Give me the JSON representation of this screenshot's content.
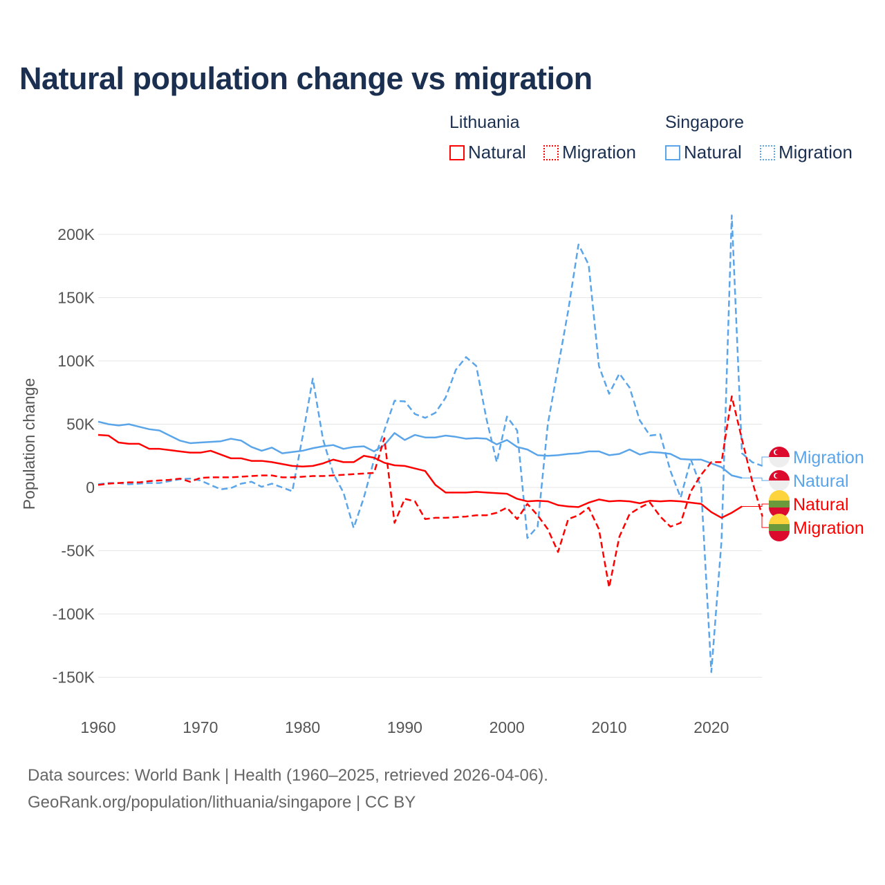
{
  "title": "Natural population change vs migration",
  "legend": {
    "groups": [
      {
        "name": "Lithuania",
        "items": [
          {
            "label": "Natural",
            "style": "solid"
          },
          {
            "label": "Migration",
            "style": "dotted"
          }
        ]
      },
      {
        "name": "Singapore",
        "items": [
          {
            "label": "Natural",
            "style": "solid"
          },
          {
            "label": "Migration",
            "style": "dotted"
          }
        ]
      }
    ]
  },
  "colors": {
    "lithuania": "#ff0000",
    "singapore": "#5aa5ea",
    "text": "#1b3050",
    "axis": "#555555",
    "grid": "#e6e6e6"
  },
  "footer": {
    "line1": "Data sources: World Bank | Health (1960–2025, retrieved 2026-04-06).",
    "line2": "GeoRank.org/population/lithuania/singapore | CC BY"
  },
  "chart_data": {
    "type": "line",
    "title": "Natural population change vs migration",
    "xlabel": "",
    "ylabel": "Population change",
    "xlim": [
      1960,
      2025
    ],
    "ylim": [
      -170000,
      215000
    ],
    "xticks": [
      "1960",
      "1970",
      "1980",
      "1990",
      "2000",
      "2010",
      "2020"
    ],
    "yticks": [
      {
        "v": 200000,
        "label": "200K"
      },
      {
        "v": 150000,
        "label": "150K"
      },
      {
        "v": 100000,
        "label": "100K"
      },
      {
        "v": 50000,
        "label": "50K"
      },
      {
        "v": 0,
        "label": "0"
      },
      {
        "v": -50000,
        "label": "-50K"
      },
      {
        "v": -100000,
        "label": "-100K"
      },
      {
        "v": -150000,
        "label": "-150K"
      }
    ],
    "grid": true,
    "start_year": 1960,
    "series": [
      {
        "name": "Singapore Migration",
        "label": "Migration",
        "country": "singapore",
        "dash": true,
        "values_k": [
          2.5,
          3.5,
          3.5,
          2.5,
          3,
          3.5,
          3.5,
          5,
          6.5,
          7,
          5.5,
          2,
          -1.5,
          -0.5,
          3,
          4.5,
          0.5,
          3,
          0,
          -3,
          40,
          86,
          38,
          11,
          -4,
          -32,
          -8,
          22,
          45,
          68.5,
          68,
          58,
          55,
          59,
          71,
          93,
          103,
          96,
          54,
          20,
          56,
          45,
          -40,
          -31,
          50,
          95,
          140,
          192,
          176,
          96,
          74,
          90,
          79,
          53,
          41,
          42,
          13,
          -8,
          22,
          0,
          -146,
          -42,
          215,
          27,
          20,
          17
        ]
      },
      {
        "name": "Singapore Natural",
        "label": "Natural",
        "country": "singapore",
        "dash": false,
        "values_k": [
          52,
          50,
          49,
          50,
          48,
          46,
          45,
          41,
          37,
          35,
          35.5,
          36,
          36.5,
          38.5,
          37,
          32,
          29,
          31.5,
          27,
          28,
          29,
          31,
          32.5,
          33.5,
          30.5,
          32,
          32.5,
          28.5,
          33.5,
          43,
          37.5,
          41.5,
          39.5,
          39.5,
          41,
          40,
          38.5,
          39,
          38.5,
          34,
          37.5,
          32,
          30,
          25.5,
          25,
          25.5,
          26.5,
          27,
          28.5,
          28.5,
          25.5,
          26.5,
          30,
          26,
          28,
          27.5,
          26.5,
          22.5,
          22,
          22,
          19,
          16,
          9.5,
          7.5
        ]
      },
      {
        "name": "Lithuania Natural",
        "label": "Natural",
        "country": "lithuania",
        "dash": false,
        "values_k": [
          41.5,
          41,
          35.5,
          34.5,
          34.5,
          30.5,
          30.5,
          29.5,
          28.5,
          27.5,
          27.5,
          29,
          26,
          23,
          23,
          21,
          21,
          20,
          18.5,
          17,
          16.5,
          17,
          19,
          22,
          20,
          20,
          25,
          23.5,
          19.5,
          17.5,
          17,
          15,
          13,
          2,
          -4,
          -4,
          -4,
          -3.5,
          -4,
          -4.5,
          -5,
          -9,
          -11,
          -10.5,
          -11,
          -14,
          -15,
          -15.5,
          -12,
          -9.5,
          -11,
          -10.5,
          -11,
          -12.5,
          -10.5,
          -11,
          -10.5,
          -11,
          -12,
          -13,
          -19.5,
          -24,
          -20,
          -15
        ]
      },
      {
        "name": "Lithuania Migration",
        "label": "Migration",
        "country": "lithuania",
        "dash": true,
        "values_k": [
          2,
          3,
          3.5,
          4,
          4,
          5,
          5.5,
          6,
          7,
          4.5,
          7.5,
          8,
          8,
          8,
          8.5,
          9,
          9.5,
          9.5,
          8,
          8,
          8.5,
          9,
          9,
          9.5,
          10,
          10.5,
          11,
          11.5,
          39,
          -28,
          -9,
          -11,
          -25,
          -24,
          -24,
          -23.5,
          -23,
          -22,
          -22,
          -20,
          -16,
          -25,
          -13,
          -22,
          -33,
          -51,
          -25,
          -22,
          -16,
          -33,
          -79,
          -39,
          -21,
          -16,
          -12,
          -23,
          -31,
          -28,
          -3,
          10,
          20,
          20,
          72,
          38,
          5,
          -23
        ]
      }
    ]
  }
}
